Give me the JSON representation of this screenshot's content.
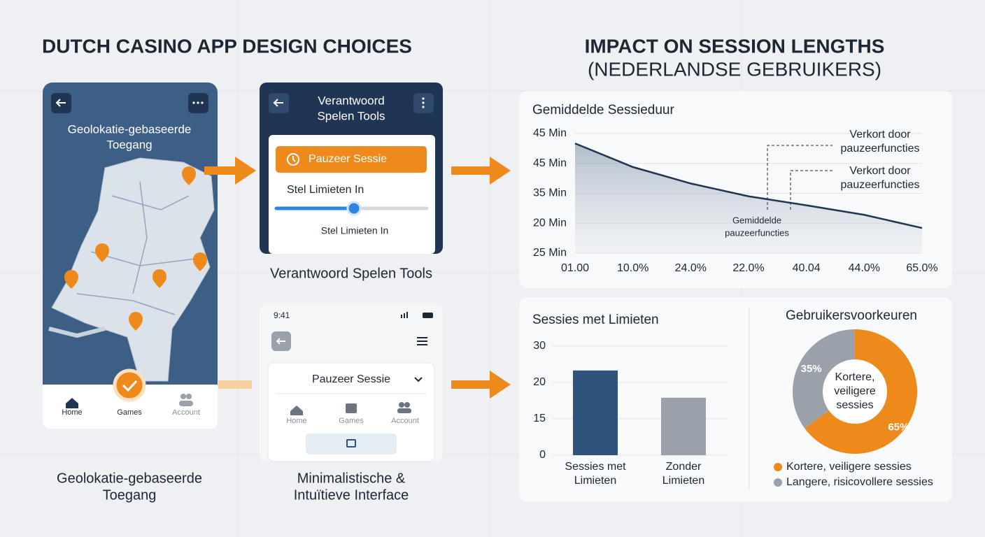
{
  "header": {
    "left_title": "DUTCH CASINO APP DESIGN CHOICES",
    "right_title": [
      "IMPACT ON SESSION LENGTHS",
      "(NEDERLANDSE GEBRUIKERS)"
    ]
  },
  "phones": [
    {
      "heading": [
        "Geolokatie-gebaseerde",
        "Toegang"
      ],
      "nav": [
        "Home",
        "Games",
        "Account"
      ],
      "caption": [
        "Geolokatie-gebaseerde",
        "Toegang"
      ]
    },
    {
      "heading": [
        "Verantwoord",
        "Spelen Tools"
      ],
      "button": "Pauzeer Sessie",
      "slider_label": "Stel Limieten In",
      "slider_hint": "Stel Limieten In",
      "caption": [
        "Verantwoord Spelen Tools"
      ]
    },
    {
      "time": "9:41",
      "menu": "Pauzeer Sessie",
      "nav": [
        "Home",
        "Games",
        "Account"
      ],
      "caption": [
        "Minimalistische &",
        "Intuïtieve Interface"
      ]
    }
  ],
  "chart_data": [
    {
      "type": "line",
      "title": "Gemiddelde Sessieduur",
      "categories": [
        "01.00",
        "10.0%",
        "24.0%",
        "22.0%",
        "40.04",
        "44.0%",
        "65.0%"
      ],
      "values": [
        3.67,
        2.88,
        2.33,
        1.9,
        1.6,
        1.28,
        0.84
      ],
      "color": "#1f3553",
      "ylim": [
        0,
        4
      ],
      "yticks": [
        {
          "value": 4,
          "label": "45 Min"
        },
        {
          "value": 3,
          "label": "45 Min"
        },
        {
          "value": 2,
          "label": "35 Min"
        },
        {
          "value": 1,
          "label": "20 Min"
        },
        {
          "value": 0,
          "label": "25 Min"
        }
      ],
      "grid": true,
      "annotations": [
        [
          "Verkort door",
          "pauzeerfuncties"
        ],
        [
          "Verkort door",
          "pauzeerfuncties"
        ],
        [
          "Gemiddelde",
          "pauzeerfuncties"
        ]
      ]
    },
    {
      "type": "bar",
      "title": "Sessies met Limieten",
      "categories": [
        [
          "Sessies met",
          "Limieten"
        ],
        [
          "Zonder",
          "Limieten"
        ]
      ],
      "values": [
        2.33,
        1.58
      ],
      "colors": [
        "#2f527a",
        "#9aa1ab"
      ],
      "ylim": [
        0,
        3
      ],
      "yticks": [
        {
          "value": 3,
          "label": "30"
        },
        {
          "value": 2,
          "label": "20"
        },
        {
          "value": 1,
          "label": "15"
        },
        {
          "value": 0,
          "label": "0"
        }
      ],
      "grid": true
    },
    {
      "type": "pie",
      "title": "Gebruikersvoorkeuren",
      "categories": [
        "Kortere, veiligere sessies",
        "Langere, risicovollere sessies"
      ],
      "values": [
        65,
        35
      ],
      "value_labels": [
        "65%",
        "35%"
      ],
      "colors": [
        "#ee8a1c",
        "#9aa1ab"
      ],
      "center_label": [
        "Kortere,",
        "veiligere",
        "sessies"
      ]
    }
  ]
}
